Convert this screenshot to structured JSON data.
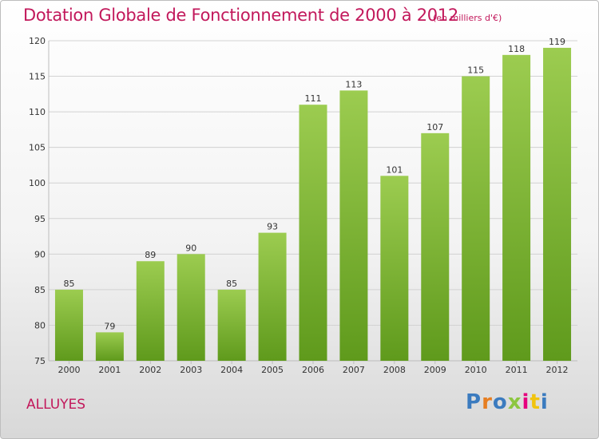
{
  "chart_data": {
    "type": "bar",
    "title": "Dotation Globale de Fonctionnement de 2000 à 2012",
    "subtitle": "(en milliers d'€)",
    "categories": [
      "2000",
      "2001",
      "2002",
      "2003",
      "2004",
      "2005",
      "2006",
      "2007",
      "2008",
      "2009",
      "2010",
      "2011",
      "2012"
    ],
    "values": [
      85,
      79,
      89,
      90,
      85,
      93,
      111,
      113,
      101,
      107,
      115,
      118,
      119
    ],
    "ylim": [
      75,
      120
    ],
    "yticks": [
      75,
      80,
      85,
      90,
      95,
      100,
      105,
      110,
      115,
      120
    ],
    "grid": true,
    "xlabel": "",
    "ylabel": ""
  },
  "commune": "ALLUYES",
  "brand": {
    "text": "Proxiti",
    "letters": [
      "P",
      "r",
      "o",
      "x",
      "i",
      "t",
      "i"
    ],
    "colors": [
      "#3b7bbf",
      "#e67e22",
      "#3b7bbf",
      "#8cc63f",
      "#e6007e",
      "#f1c40f",
      "#3b7bbf"
    ]
  },
  "colors": {
    "title": "#c2185b",
    "bar_top": "#9ccc50",
    "bar_bottom": "#5f9a1c",
    "grid": "#d2d2d2"
  }
}
